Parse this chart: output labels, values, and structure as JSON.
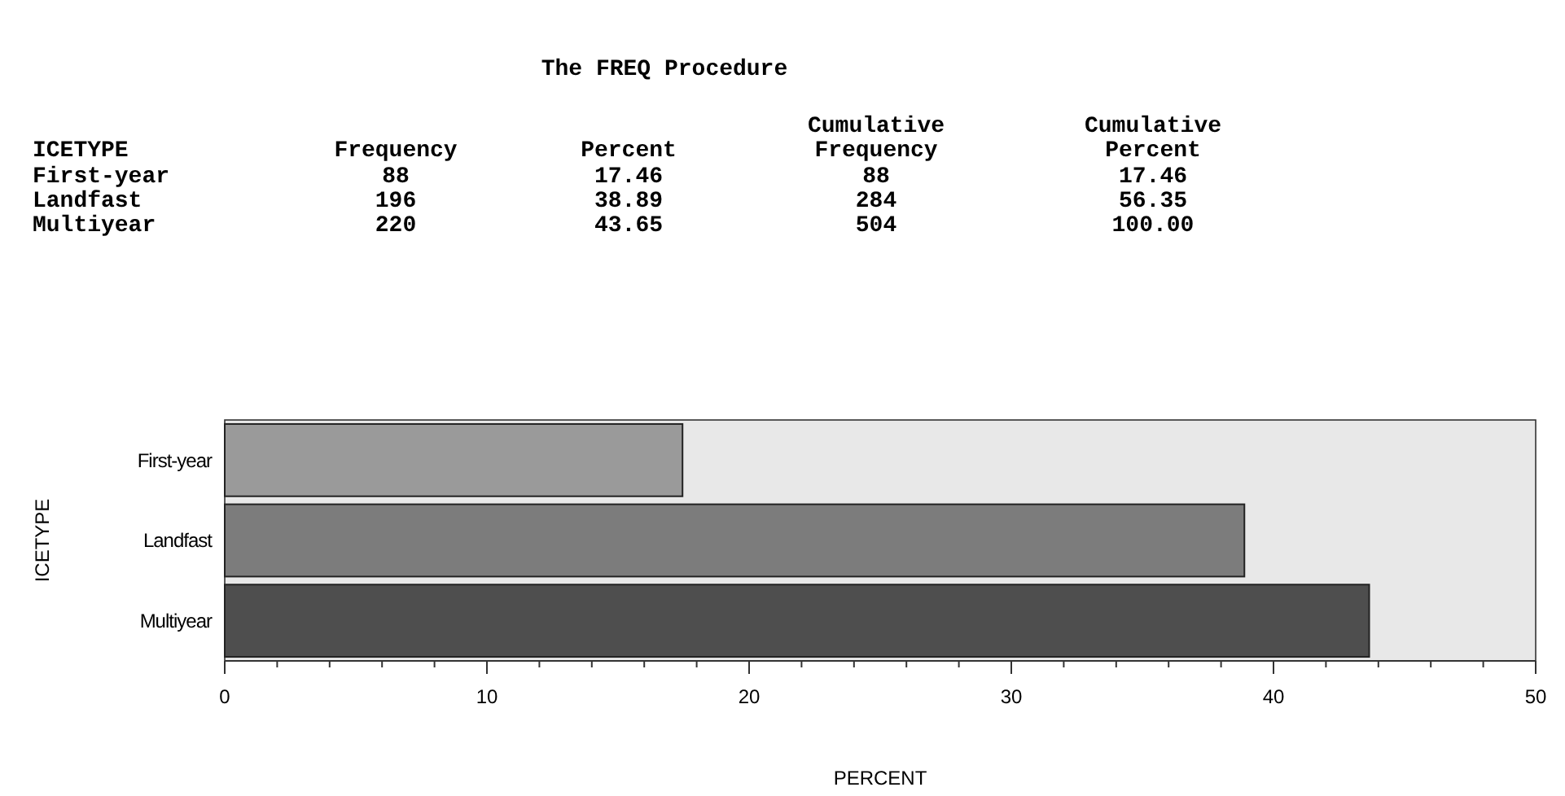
{
  "chart_data": [
    {
      "type": "other",
      "title": "The FREQ Procedure",
      "ylabel": "ICETYPE",
      "data_labels": true,
      "categories": [
        "First-year",
        "Landfast",
        "Multiyear"
      ],
      "series": [
        {
          "name": "Frequency",
          "values": [
            88,
            196,
            220
          ]
        },
        {
          "name": "Percent",
          "values": [
            17.46,
            38.89,
            43.65
          ]
        },
        {
          "name": "Cumulative Frequency",
          "values": [
            88,
            284,
            504
          ]
        },
        {
          "name": "Cumulative Percent",
          "values": [
            17.46,
            56.35,
            100
          ],
          "value_labels": [
            "17.46",
            "56.35",
            "100.00"
          ]
        }
      ]
    },
    {
      "type": "bar",
      "orientation": "horizontal",
      "categories": [
        "First-year",
        "Landfast",
        "Multiyear"
      ],
      "values": [
        17.46,
        38.89,
        43.65
      ],
      "colors": [
        "#9a9a9a",
        "#7c7c7c",
        "#4e4e4e"
      ],
      "xlabel": "PERCENT",
      "ylabel": "ICETYPE",
      "xlim": [
        0,
        50
      ],
      "xticks": [
        0,
        {
          "value": 2,
          "label": null
        },
        {
          "value": 4,
          "label": null
        },
        {
          "value": 6,
          "label": null
        },
        {
          "value": 8,
          "label": null
        },
        10,
        {
          "value": 12,
          "label": null
        },
        {
          "value": 14,
          "label": null
        },
        {
          "value": 16,
          "label": null
        },
        {
          "value": 18,
          "label": null
        },
        20,
        {
          "value": 22,
          "label": null
        },
        {
          "value": 24,
          "label": null
        },
        {
          "value": 26,
          "label": null
        },
        {
          "value": 28,
          "label": null
        },
        30,
        {
          "value": 32,
          "label": null
        },
        {
          "value": 34,
          "label": null
        },
        {
          "value": 36,
          "label": null
        },
        {
          "value": 38,
          "label": null
        },
        40,
        {
          "value": 42,
          "label": null
        },
        {
          "value": 44,
          "label": null
        },
        {
          "value": 46,
          "label": null
        },
        {
          "value": 48,
          "label": null
        },
        50
      ]
    }
  ]
}
